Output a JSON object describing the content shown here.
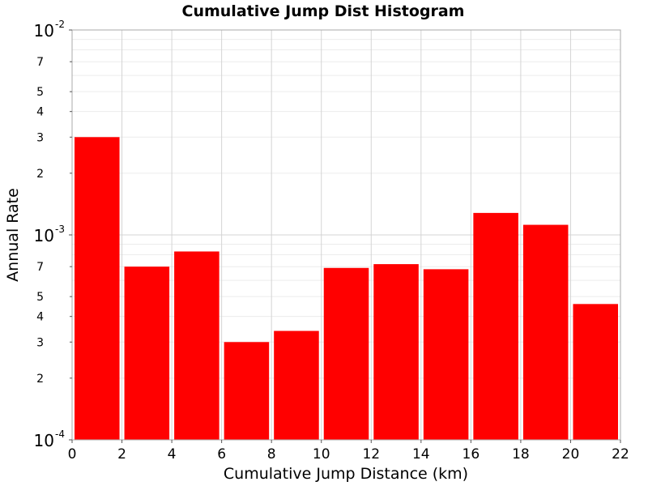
{
  "chart_data": {
    "type": "bar",
    "title": "Cumulative Jump Dist Histogram",
    "xlabel": "Cumulative Jump Distance (km)",
    "ylabel": "Annual Rate",
    "xlim": [
      0,
      22
    ],
    "ylim": [
      0.0001,
      0.01
    ],
    "yscale": "log",
    "grid": true,
    "bar_color": "#ff0000",
    "x_ticks": [
      "0",
      "2",
      "4",
      "6",
      "8",
      "10",
      "12",
      "14",
      "16",
      "18",
      "20",
      "22"
    ],
    "y_major_ticks": [
      {
        "value": 0.0001,
        "base": "10",
        "exp": "-4"
      },
      {
        "value": 0.001,
        "base": "10",
        "exp": "-3"
      },
      {
        "value": 0.01,
        "base": "10",
        "exp": "-2"
      }
    ],
    "y_minor_ticks": [
      {
        "value": 0.0002,
        "label": "2"
      },
      {
        "value": 0.0003,
        "label": "3"
      },
      {
        "value": 0.0004,
        "label": "4"
      },
      {
        "value": 0.0005,
        "label": "5"
      },
      {
        "value": 0.0007,
        "label": "7"
      },
      {
        "value": 0.002,
        "label": "2"
      },
      {
        "value": 0.003,
        "label": "3"
      },
      {
        "value": 0.004,
        "label": "4"
      },
      {
        "value": 0.005,
        "label": "5"
      },
      {
        "value": 0.007,
        "label": "7"
      }
    ],
    "bins": [
      {
        "x0": 0,
        "x1": 2,
        "value": 0.003
      },
      {
        "x0": 2,
        "x1": 4,
        "value": 0.0007
      },
      {
        "x0": 4,
        "x1": 6,
        "value": 0.00083
      },
      {
        "x0": 6,
        "x1": 8,
        "value": 0.0003
      },
      {
        "x0": 8,
        "x1": 10,
        "value": 0.00034
      },
      {
        "x0": 10,
        "x1": 12,
        "value": 0.00069
      },
      {
        "x0": 12,
        "x1": 14,
        "value": 0.00072
      },
      {
        "x0": 14,
        "x1": 16,
        "value": 0.00068
      },
      {
        "x0": 16,
        "x1": 18,
        "value": 0.00128
      },
      {
        "x0": 18,
        "x1": 20,
        "value": 0.00112
      },
      {
        "x0": 20,
        "x1": 22,
        "value": 0.00046
      }
    ]
  }
}
